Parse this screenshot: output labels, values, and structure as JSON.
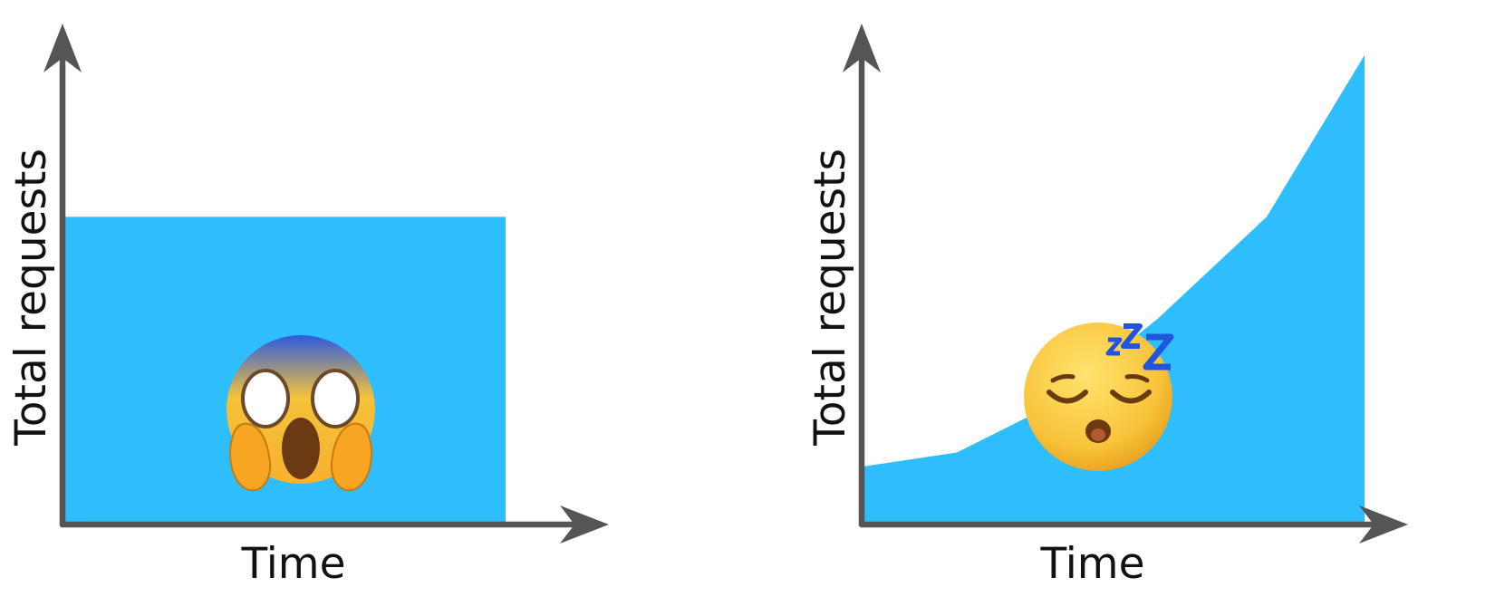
{
  "colors": {
    "area_fill": "#2EBDFD",
    "axis": "#555555",
    "text": "#111111"
  },
  "chart_data": [
    {
      "type": "area",
      "xlabel": "Time",
      "ylabel": "Total requests",
      "grid": false,
      "legend": "none",
      "xlim": [
        0,
        1
      ],
      "ylim": [
        0,
        1
      ],
      "x": [
        0,
        0.81,
        0.81
      ],
      "values": [
        0.66,
        0.66,
        0
      ],
      "annotation_icon": "face-screaming-in-fear-icon"
    },
    {
      "type": "area",
      "xlabel": "Time",
      "ylabel": "Total requests",
      "grid": false,
      "legend": "none",
      "xlim": [
        0,
        1
      ],
      "ylim": [
        0,
        1
      ],
      "x": [
        0,
        0.17,
        0.34,
        0.54,
        0.74,
        0.92,
        0.92
      ],
      "values": [
        0.12,
        0.15,
        0.25,
        0.44,
        0.66,
        1.01,
        0
      ],
      "annotation_icon": "sleeping-face-icon"
    }
  ]
}
